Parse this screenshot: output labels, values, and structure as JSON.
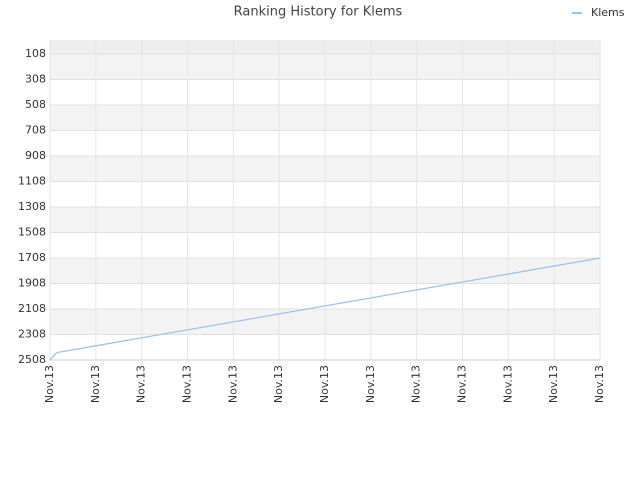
{
  "chart_data": {
    "type": "line",
    "title": "Ranking History for Klems",
    "x": [
      0,
      0.12,
      0.15,
      12
    ],
    "series": [
      {
        "name": "Klems",
        "color": "#99c4ee",
        "values": [
          2508,
          2460,
          2450,
          1708
        ]
      }
    ],
    "xlim": [
      0,
      12
    ],
    "xticks": [
      {
        "value": 0,
        "label": "Nov.13"
      },
      {
        "value": 1,
        "label": "Nov.13"
      },
      {
        "value": 2,
        "label": "Nov.13"
      },
      {
        "value": 3,
        "label": "Nov.13"
      },
      {
        "value": 4,
        "label": "Nov.13"
      },
      {
        "value": 5,
        "label": "Nov.13"
      },
      {
        "value": 6,
        "label": "Nov.13"
      },
      {
        "value": 7,
        "label": "Nov.13"
      },
      {
        "value": 8,
        "label": "Nov.13"
      },
      {
        "value": 9,
        "label": "Nov.13"
      },
      {
        "value": 10,
        "label": "Nov.13"
      },
      {
        "value": 11,
        "label": "Nov.13"
      },
      {
        "value": 12,
        "label": "Nov.13"
      }
    ],
    "ylim": [
      -2,
      2508
    ],
    "y_inverted": true,
    "yticks": [
      108,
      308,
      508,
      708,
      908,
      1108,
      1308,
      1508,
      1708,
      1908,
      2108,
      2308,
      2508
    ],
    "grid": true,
    "alternate_bands": true,
    "legend": "top-right"
  }
}
